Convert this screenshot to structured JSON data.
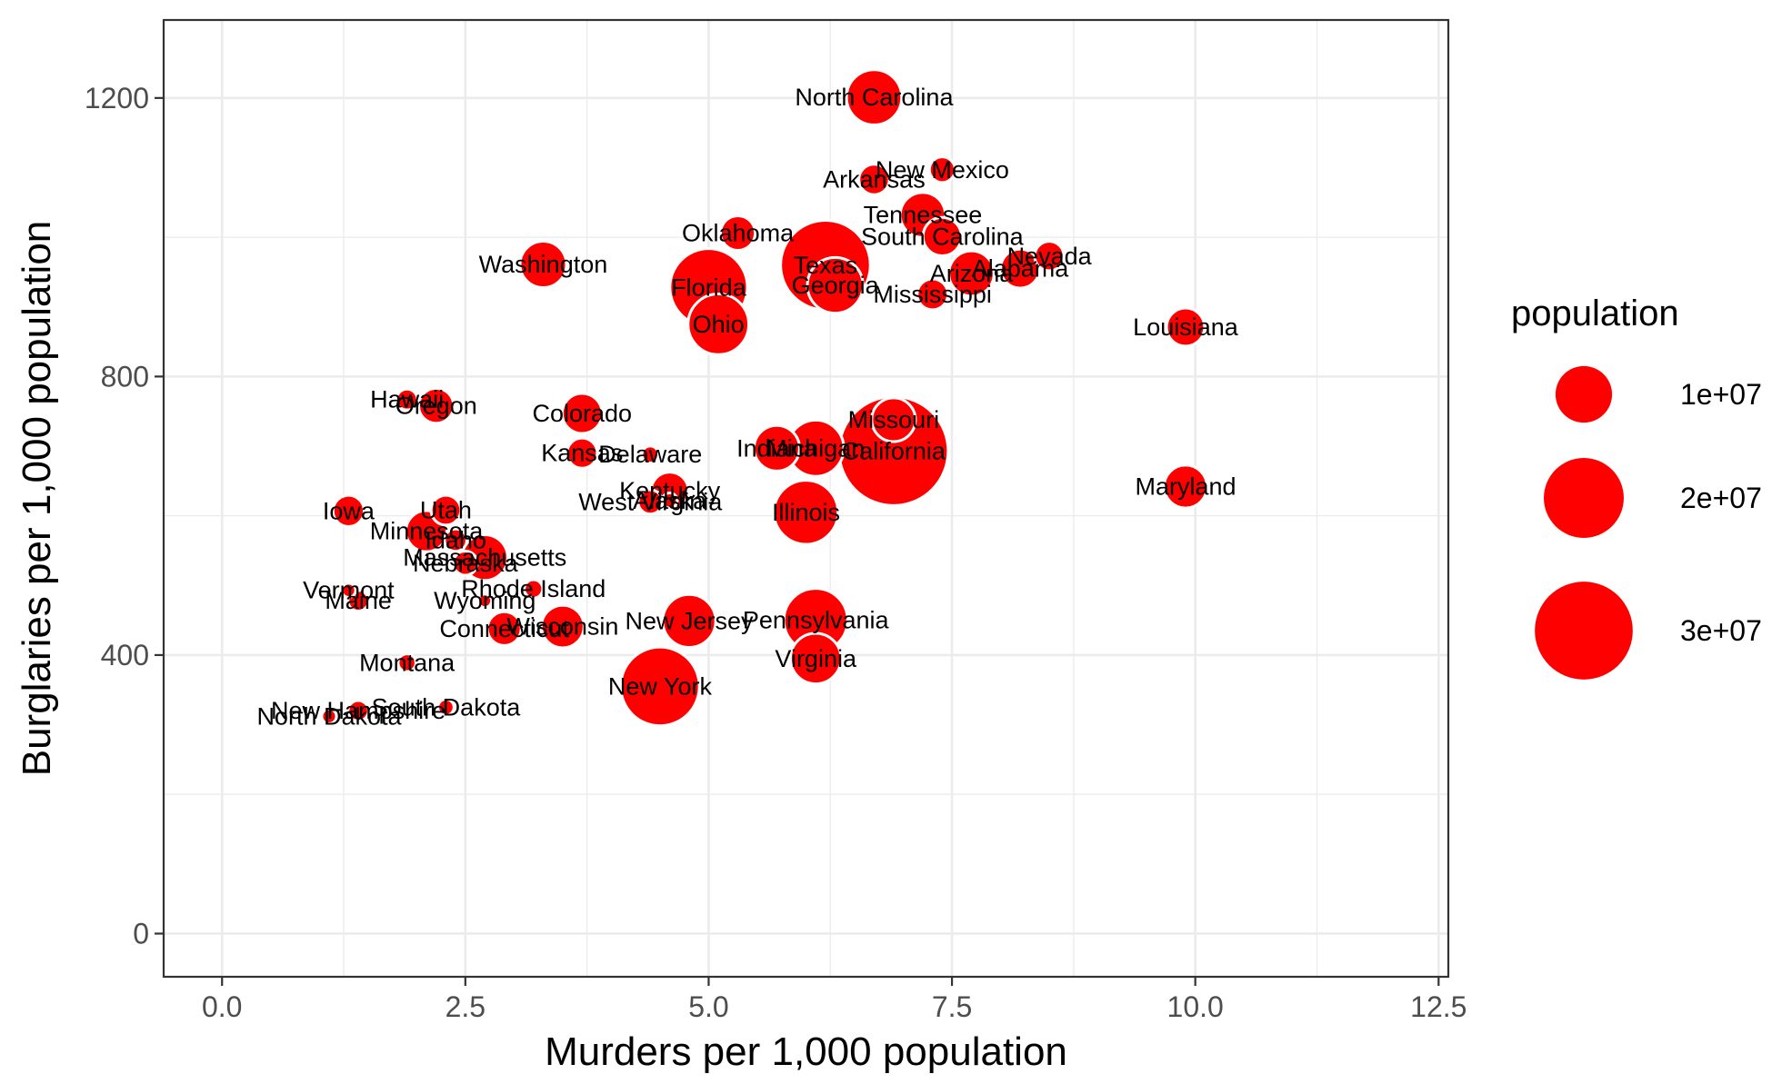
{
  "chart_data": {
    "type": "scatter",
    "xlabel": "Murders per 1,000 population",
    "ylabel": "Burglaries per 1,000 population",
    "xlim": [
      -0.6,
      12.6
    ],
    "ylim": [
      -62,
      1312
    ],
    "x_major_ticks": [
      0,
      2.5,
      5,
      7.5,
      10,
      12.5
    ],
    "x_tick_labels": [
      "0.0",
      "2.5",
      "5.0",
      "7.5",
      "10.0",
      "12.5"
    ],
    "x_minor_ticks": [
      1.25,
      3.75,
      6.25,
      8.75,
      11.25
    ],
    "y_major_ticks": [
      0,
      400,
      800,
      1200
    ],
    "y_tick_labels": [
      "0",
      "400",
      "800",
      "1200"
    ],
    "y_minor_ticks": [
      200,
      600,
      1000
    ],
    "grid": true,
    "theme": "bw",
    "point_color": "#ff0000",
    "point_outline": "#ffffff",
    "size_variable": "population",
    "legend": {
      "title": "population",
      "position": "right",
      "entries": [
        {
          "label": "1e+07",
          "value": 10000000
        },
        {
          "label": "2e+07",
          "value": 20000000
        },
        {
          "label": "3e+07",
          "value": 30000000
        }
      ]
    },
    "points": [
      {
        "label": "North Carolina",
        "x": 6.7,
        "y": 1201,
        "population": 9535000
      },
      {
        "label": "New Mexico",
        "x": 7.4,
        "y": 1097,
        "population": 2059000
      },
      {
        "label": "Arkansas",
        "x": 6.7,
        "y": 1083,
        "population": 2916000
      },
      {
        "label": "Tennessee",
        "x": 7.2,
        "y": 1032,
        "population": 6346000
      },
      {
        "label": "South Carolina",
        "x": 7.4,
        "y": 1001,
        "population": 4625000
      },
      {
        "label": "Oklahoma",
        "x": 5.3,
        "y": 1006,
        "population": 3751000
      },
      {
        "label": "Nevada",
        "x": 8.5,
        "y": 973,
        "population": 2701000
      },
      {
        "label": "Washington",
        "x": 3.3,
        "y": 961,
        "population": 6725000
      },
      {
        "label": "Texas",
        "x": 6.2,
        "y": 960,
        "population": 25146000
      },
      {
        "label": "Alabama",
        "x": 8.2,
        "y": 955,
        "population": 4780000
      },
      {
        "label": "Arizona",
        "x": 7.7,
        "y": 948,
        "population": 6392000
      },
      {
        "label": "Florida",
        "x": 5.0,
        "y": 928,
        "population": 18801000
      },
      {
        "label": "Georgia",
        "x": 6.3,
        "y": 931,
        "population": 9688000
      },
      {
        "label": "Mississippi",
        "x": 7.3,
        "y": 918,
        "population": 2967000
      },
      {
        "label": "Ohio",
        "x": 5.1,
        "y": 875,
        "population": 11537000
      },
      {
        "label": "Louisiana",
        "x": 9.9,
        "y": 871,
        "population": 4533000
      },
      {
        "label": "Hawaii",
        "x": 1.9,
        "y": 767,
        "population": 1360000
      },
      {
        "label": "Oregon",
        "x": 2.2,
        "y": 758,
        "population": 3831000
      },
      {
        "label": "Colorado",
        "x": 3.7,
        "y": 747,
        "population": 5029000
      },
      {
        "label": "Missouri",
        "x": 6.9,
        "y": 738,
        "population": 5989000
      },
      {
        "label": "Indiana",
        "x": 5.7,
        "y": 697,
        "population": 6484000
      },
      {
        "label": "Michigan",
        "x": 6.1,
        "y": 697,
        "population": 9884000
      },
      {
        "label": "California",
        "x": 6.9,
        "y": 693,
        "population": 37254000
      },
      {
        "label": "Kansas",
        "x": 3.7,
        "y": 690,
        "population": 2853000
      },
      {
        "label": "Delaware",
        "x": 4.4,
        "y": 688,
        "population": 898000
      },
      {
        "label": "Maryland",
        "x": 9.9,
        "y": 642,
        "population": 5774000
      },
      {
        "label": "Kentucky",
        "x": 4.6,
        "y": 636,
        "population": 4339000
      },
      {
        "label": "West Virginia",
        "x": 4.4,
        "y": 620,
        "population": 1853000
      },
      {
        "label": "Alaska",
        "x": 4.6,
        "y": 622,
        "population": 710000
      },
      {
        "label": "Illinois",
        "x": 6.0,
        "y": 605,
        "population": 12831000
      },
      {
        "label": "Iowa",
        "x": 1.3,
        "y": 607,
        "population": 3046000
      },
      {
        "label": "Utah",
        "x": 2.3,
        "y": 608,
        "population": 2764000
      },
      {
        "label": "Minnesota",
        "x": 2.1,
        "y": 578,
        "population": 5304000
      },
      {
        "label": "Idaho",
        "x": 2.4,
        "y": 565,
        "population": 1568000
      },
      {
        "label": "Massachusetts",
        "x": 2.7,
        "y": 540,
        "population": 6548000
      },
      {
        "label": "Nebraska",
        "x": 2.5,
        "y": 532,
        "population": 1826000
      },
      {
        "label": "Rhode Island",
        "x": 3.2,
        "y": 495,
        "population": 1053000
      },
      {
        "label": "Vermont",
        "x": 1.3,
        "y": 493,
        "population": 626000
      },
      {
        "label": "Maine",
        "x": 1.4,
        "y": 478,
        "population": 1328000
      },
      {
        "label": "Wyoming",
        "x": 2.7,
        "y": 478,
        "population": 564000
      },
      {
        "label": "New Jersey",
        "x": 4.8,
        "y": 449,
        "population": 8792000
      },
      {
        "label": "Pennsylvania",
        "x": 6.1,
        "y": 450,
        "population": 12702000
      },
      {
        "label": "Wisconsin",
        "x": 3.5,
        "y": 441,
        "population": 5687000
      },
      {
        "label": "Connecticut",
        "x": 2.9,
        "y": 438,
        "population": 3574000
      },
      {
        "label": "Virginia",
        "x": 6.1,
        "y": 395,
        "population": 8001000
      },
      {
        "label": "Montana",
        "x": 1.9,
        "y": 389,
        "population": 989000
      },
      {
        "label": "New York",
        "x": 4.5,
        "y": 355,
        "population": 19378000
      },
      {
        "label": "South Dakota",
        "x": 2.3,
        "y": 325,
        "population": 814000
      },
      {
        "label": "New Hampshire",
        "x": 1.4,
        "y": 320,
        "population": 1316000
      },
      {
        "label": "North Dakota",
        "x": 1.1,
        "y": 312,
        "population": 673000
      }
    ]
  }
}
